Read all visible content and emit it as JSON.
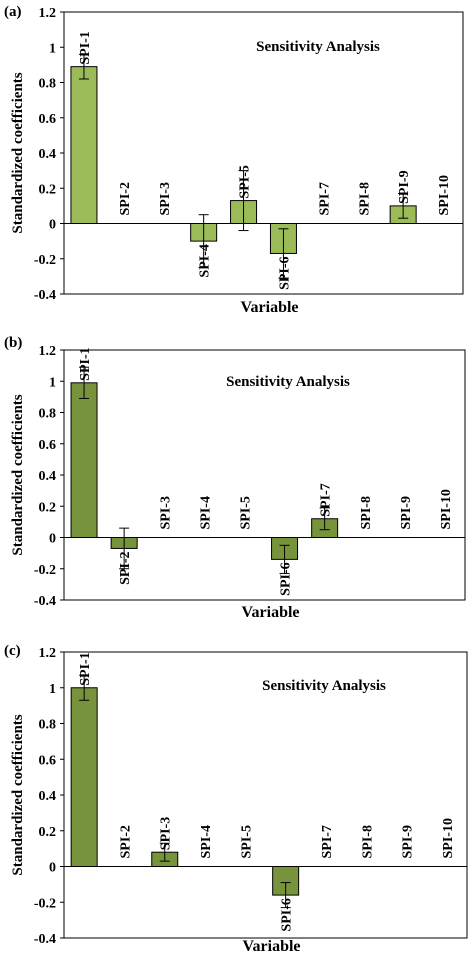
{
  "chart_data": [
    {
      "type": "bar",
      "panel_label": "(a)",
      "title": "Sensitivity Analysis",
      "xlabel": "Variable",
      "ylabel": "Standardized coefficients",
      "ylim": [
        -0.4,
        1.2
      ],
      "yticks": [
        "-0.4",
        "-0.2",
        "0",
        "0.2",
        "0.4",
        "0.6",
        "0.8",
        "1",
        "1.2"
      ],
      "bar_color": "#9bbb59",
      "categories": [
        "SPI-1",
        "SPI-2",
        "SPI-3",
        "SPI-4",
        "SPI-5",
        "SPI-6",
        "SPI-7",
        "SPI-8",
        "SPI-9",
        "SPI-10"
      ],
      "values": [
        0.89,
        0,
        0,
        -0.1,
        0.13,
        -0.17,
        0,
        0,
        0.1,
        0
      ],
      "errors": [
        0.07,
        0,
        0,
        0.15,
        0.17,
        0.14,
        0,
        0,
        0.07,
        0
      ]
    },
    {
      "type": "bar",
      "panel_label": "(b)",
      "title": "Sensitivity Analysis",
      "xlabel": "Variable",
      "ylabel": "Standardized coefficients",
      "ylim": [
        -0.4,
        1.2
      ],
      "yticks": [
        "-0.4",
        "-0.2",
        "0",
        "0.2",
        "0.4",
        "0.6",
        "0.8",
        "1",
        "1.2"
      ],
      "bar_color": "#77933c",
      "categories": [
        "SPI-1",
        "SPI-2",
        "SPI-3",
        "SPI-4",
        "SPI-5",
        "SPI-6",
        "SPI-7",
        "SPI-8",
        "SPI-9",
        "SPI-10"
      ],
      "values": [
        0.99,
        -0.07,
        0,
        0,
        0,
        -0.14,
        0.12,
        0,
        0,
        0
      ],
      "errors": [
        0.1,
        0.13,
        0,
        0,
        0,
        0.09,
        0.07,
        0,
        0,
        0
      ]
    },
    {
      "type": "bar",
      "panel_label": "(c)",
      "title": "Sensitivity Analysis",
      "xlabel": "Variable",
      "ylabel": "Standardized coefficients",
      "ylim": [
        -0.4,
        1.2
      ],
      "yticks": [
        "-0.4",
        "-0.2",
        "0",
        "0.2",
        "0.4",
        "0.6",
        "0.8",
        "1",
        "1.2"
      ],
      "bar_color": "#77933c",
      "categories": [
        "SPI-1",
        "SPI-2",
        "SPI-3",
        "SPI-4",
        "SPI-5",
        "SPI-6",
        "SPI-7",
        "SPI-8",
        "SPI-9",
        "SPI-10"
      ],
      "values": [
        1.0,
        0,
        0.08,
        0,
        0,
        -0.16,
        0,
        0,
        0,
        0
      ],
      "errors": [
        0.07,
        0,
        0.05,
        0,
        0,
        0.07,
        0,
        0,
        0,
        0
      ]
    }
  ]
}
